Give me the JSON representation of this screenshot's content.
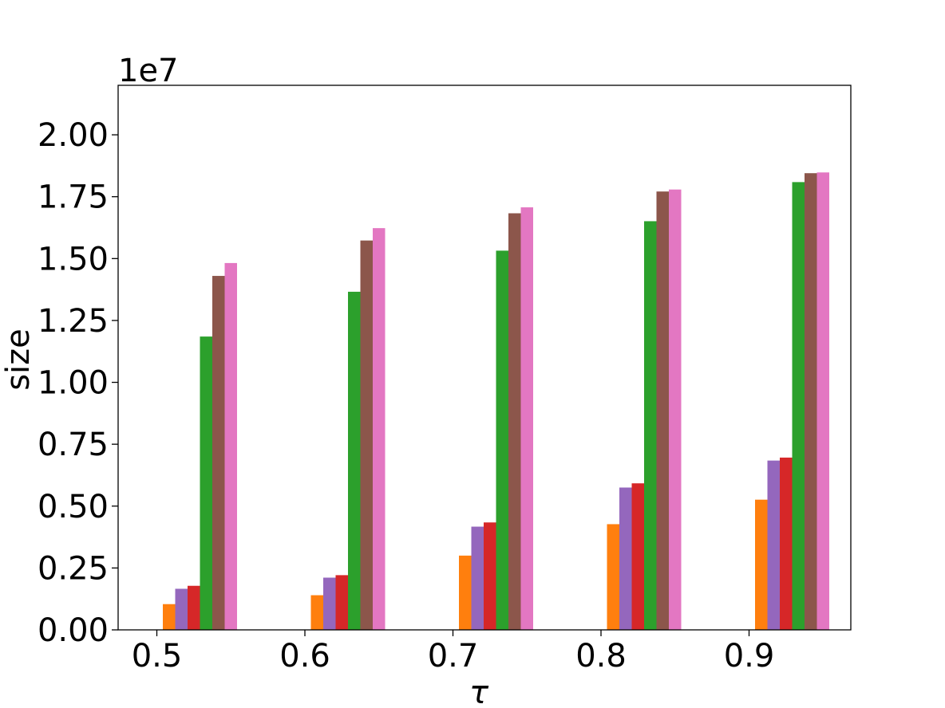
{
  "chart_data": {
    "type": "bar",
    "title": "",
    "xlabel": "τ",
    "ylabel": "size",
    "y_offset_text": "1e7",
    "categories": [
      "0.5",
      "0.6",
      "0.7",
      "0.8",
      "0.9"
    ],
    "ylim": [
      0,
      2.2
    ],
    "yticks": [
      "0.00",
      "0.25",
      "0.50",
      "0.75",
      "1.00",
      "1.25",
      "1.50",
      "1.75",
      "2.00"
    ],
    "grid": false,
    "legend": "none",
    "series": [
      {
        "color": "#ff7f0e",
        "values": [
          0.104,
          0.14,
          0.3,
          0.427,
          0.526
        ]
      },
      {
        "color": "#9467bd",
        "values": [
          0.166,
          0.211,
          0.417,
          0.575,
          0.684
        ]
      },
      {
        "color": "#d62728",
        "values": [
          0.178,
          0.221,
          0.434,
          0.592,
          0.696
        ]
      },
      {
        "color": "#2ca02c",
        "values": [
          1.185,
          1.366,
          1.532,
          1.651,
          1.809
        ]
      },
      {
        "color": "#8c564b",
        "values": [
          1.43,
          1.573,
          1.683,
          1.771,
          1.845
        ]
      },
      {
        "color": "#e377c2",
        "values": [
          1.482,
          1.623,
          1.707,
          1.779,
          1.848
        ]
      }
    ]
  }
}
